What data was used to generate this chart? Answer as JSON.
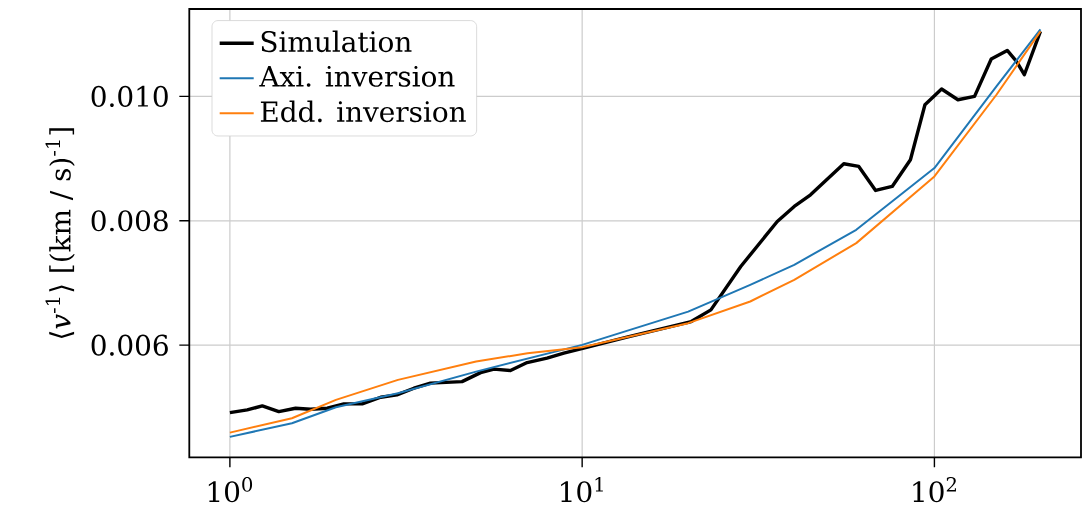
{
  "chart_data": {
    "type": "line",
    "ylabel": "⟨*v*$^{-1}$⟩ [(km / s)$^{-1}$]",
    "log": "x",
    "grid": true,
    "legend": "top left",
    "xlim": [
      0.767,
      260.7
    ],
    "ylim": [
      0.004197,
      0.011406
    ],
    "xticks": [
      {
        "value": 1,
        "label": "10$^{0}$"
      },
      {
        "value": 10,
        "label": "10$^{1}$"
      },
      {
        "value": 100,
        "label": "10$^{2}$"
      }
    ],
    "yticks": [
      {
        "value": 0.006,
        "label": "0.006"
      },
      {
        "value": 0.008,
        "label": "0.008"
      },
      {
        "value": 0.01,
        "label": "0.010"
      }
    ],
    "series": [
      {
        "name": "Simulation",
        "color": "#000000",
        "x": [
          1,
          1.12,
          1.236,
          1.377,
          1.536,
          1.694,
          1.89,
          2.107,
          2.375,
          2.68,
          2.98,
          3.33,
          3.71,
          4.56,
          5.15,
          5.62,
          6.26,
          6.98,
          7.95,
          8.87,
          10.1,
          13.4,
          20.4,
          23.2,
          28.2,
          35.8,
          40.0,
          44.5,
          55.3,
          61.0,
          68.1,
          75.9,
          85.5,
          94.0,
          104.8,
          116.6,
          130,
          145,
          161,
          171,
          180,
          200
        ],
        "values": [
          0.004915,
          0.004959,
          0.005023,
          0.004932,
          0.004986,
          0.00497,
          0.004986,
          0.005056,
          0.005056,
          0.005163,
          0.0052,
          0.005308,
          0.005389,
          0.005414,
          0.005559,
          0.005614,
          0.005592,
          0.00572,
          0.005791,
          0.005871,
          0.005952,
          0.006129,
          0.00638,
          0.006568,
          0.007265,
          0.007989,
          0.00823,
          0.008418,
          0.008917,
          0.008874,
          0.008488,
          0.008552,
          0.008981,
          0.009866,
          0.010119,
          0.009947,
          0.01,
          0.010602,
          0.01074,
          0.010563,
          0.010349,
          0.011046
        ]
      },
      {
        "name": "Axi. inversion",
        "color": "#1f77b4",
        "x": [
          1,
          1.5,
          2,
          3,
          5,
          10,
          20,
          30,
          40,
          60,
          100,
          150,
          200
        ],
        "values": [
          0.004525,
          0.004745,
          0.005002,
          0.005228,
          0.005575,
          0.006005,
          0.00654,
          0.00697,
          0.007292,
          0.007855,
          0.008848,
          0.01016,
          0.011078
        ]
      },
      {
        "name": "Edd. inversion",
        "color": "#ff7f0e",
        "x": [
          1,
          1.5,
          2,
          3,
          5,
          7,
          10,
          20,
          30,
          40,
          60,
          100,
          150,
          200
        ],
        "values": [
          0.004594,
          0.004825,
          0.00512,
          0.005442,
          0.005736,
          0.005871,
          0.005968,
          0.006354,
          0.006702,
          0.007051,
          0.007641,
          0.008713,
          0.010027,
          0.011046
        ]
      }
    ]
  }
}
